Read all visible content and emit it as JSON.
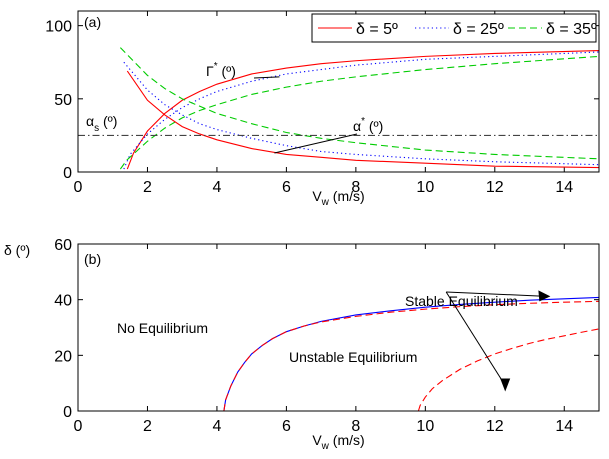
{
  "chart_data": [
    {
      "type": "line",
      "panel_label": "(a)",
      "xlabel": "V",
      "xlabel_sub": "w",
      "xlabel_unit": " (m/s)",
      "xlim": [
        0,
        15
      ],
      "ylim": [
        0,
        110
      ],
      "x_ticks": [
        0,
        2,
        4,
        6,
        8,
        10,
        12,
        14
      ],
      "y_ticks": [
        0,
        50,
        100
      ],
      "grid": false,
      "legend_position": "top-right",
      "legend": [
        {
          "name": "δ = 5º",
          "color": "#ff0000",
          "style": "solid"
        },
        {
          "name": "δ = 25º",
          "color": "#0000ff",
          "style": "dotted"
        },
        {
          "name": "δ = 35º",
          "color": "#00cc00",
          "style": "dashed"
        }
      ],
      "series": [
        {
          "group": "Γ*",
          "delta": 5,
          "color": "#ff0000",
          "style": "solid",
          "x": [
            1.42,
            1.6,
            2.0,
            2.5,
            3.0,
            3.5,
            4.0,
            5.0,
            6.0,
            7.0,
            8.0,
            10.0,
            12.0,
            15.0
          ],
          "y": [
            2,
            13,
            28,
            40,
            49,
            55,
            60,
            67,
            71,
            74,
            76,
            79,
            81,
            83
          ]
        },
        {
          "group": "Γ*",
          "delta": 25,
          "color": "#0000ff",
          "style": "dotted",
          "x": [
            1.32,
            1.5,
            2.0,
            2.5,
            3.0,
            3.5,
            4.0,
            5.0,
            6.0,
            7.0,
            8.0,
            10.0,
            12.0,
            15.0
          ],
          "y": [
            2,
            12,
            26,
            36,
            44,
            50,
            55,
            62,
            67,
            70,
            73,
            77,
            79,
            82
          ]
        },
        {
          "group": "Γ*",
          "delta": 35,
          "color": "#00cc00",
          "style": "dashed",
          "x": [
            1.22,
            1.4,
            2.0,
            2.5,
            3.0,
            3.5,
            4.0,
            5.0,
            6.0,
            7.0,
            8.0,
            10.0,
            12.0,
            15.0
          ],
          "y": [
            2,
            8,
            21,
            30,
            37,
            42,
            46,
            53,
            58,
            62,
            65,
            70,
            74,
            79
          ]
        },
        {
          "group": "α*",
          "delta": 5,
          "color": "#ff0000",
          "style": "solid",
          "x": [
            1.42,
            2.0,
            2.5,
            3.0,
            3.5,
            4.0,
            5.0,
            6.0,
            7.0,
            8.0,
            10.0,
            12.0,
            15.0
          ],
          "y": [
            69,
            49,
            39,
            31,
            26,
            22,
            16,
            12,
            10,
            8,
            6,
            4,
            3
          ]
        },
        {
          "group": "α*",
          "delta": 25,
          "color": "#0000ff",
          "style": "dotted",
          "x": [
            1.32,
            2.0,
            2.5,
            3.0,
            3.5,
            4.0,
            5.0,
            6.0,
            7.0,
            8.0,
            10.0,
            12.0,
            15.0
          ],
          "y": [
            75,
            56,
            46,
            39,
            33,
            29,
            23,
            18,
            14,
            12,
            9,
            7,
            5
          ]
        },
        {
          "group": "α*",
          "delta": 35,
          "color": "#00cc00",
          "style": "dashed",
          "x": [
            1.22,
            2.0,
            2.5,
            3.0,
            3.5,
            4.0,
            5.0,
            6.0,
            7.0,
            8.0,
            10.0,
            12.0,
            15.0
          ],
          "y": [
            85,
            66,
            57,
            50,
            45,
            40,
            33,
            27,
            23,
            20,
            15,
            12,
            9
          ]
        },
        {
          "group": "αs",
          "color": "#444444",
          "style": "dashdot",
          "x": [
            0,
            15
          ],
          "y": [
            25,
            25
          ]
        }
      ],
      "annotations": [
        {
          "base": "Γ",
          "sup": "*",
          "tail": " (º)",
          "points_to": [
            5.8,
            65
          ]
        },
        {
          "base": "α",
          "sup": "*",
          "tail": " (º)",
          "points_to": [
            6.0,
            13
          ]
        },
        {
          "base": "α",
          "sub": "s",
          "tail": " (º)",
          "points_to": null
        }
      ]
    },
    {
      "type": "line",
      "panel_label": "(b)",
      "ylabel": "δ (º)",
      "xlabel": "V",
      "xlabel_sub": "w",
      "xlabel_unit": " (m/s)",
      "xlim": [
        0,
        15
      ],
      "ylim": [
        0,
        60
      ],
      "x_ticks": [
        0,
        2,
        4,
        6,
        8,
        10,
        12,
        14
      ],
      "y_ticks": [
        0,
        20,
        40,
        60
      ],
      "grid": false,
      "series": [
        {
          "name": "stable",
          "color": "#0000ff",
          "style": "solid",
          "x": [
            4.2,
            4.25,
            4.4,
            4.6,
            4.8,
            5.0,
            5.3,
            5.6,
            6.0,
            6.5,
            7.0,
            8.0,
            9.0,
            10.0,
            11.0,
            12.0,
            13.0,
            14.0,
            15.0
          ],
          "y": [
            0,
            4,
            9,
            14,
            17.5,
            20.5,
            23.5,
            26,
            28.5,
            30.5,
            32.2,
            34.5,
            36,
            37.3,
            38.3,
            39.1,
            39.8,
            40.3,
            40.8
          ]
        },
        {
          "name": "unstable-1",
          "color": "#ff0000",
          "style": "dashed",
          "x": [
            4.2,
            4.25,
            4.4,
            4.6,
            4.8,
            5.0,
            5.3,
            5.6,
            6.0,
            6.5,
            7.0,
            8.0,
            9.0,
            10.0,
            11.0,
            12.0,
            13.0,
            14.0,
            15.0
          ],
          "y": [
            0,
            4,
            9,
            14,
            17.5,
            20.5,
            23.5,
            26,
            28.5,
            30.5,
            32,
            34,
            35.5,
            36.6,
            37.5,
            38.2,
            38.7,
            39.1,
            39.4
          ]
        },
        {
          "name": "unstable-2",
          "color": "#ff0000",
          "style": "dashed",
          "x": [
            9.8,
            9.85,
            10.0,
            10.2,
            10.5,
            11.0,
            11.5,
            12.0,
            12.5,
            13.0,
            13.5,
            14.0,
            14.5,
            15.0
          ],
          "y": [
            0,
            2,
            5,
            8,
            11,
            15,
            18,
            20.5,
            22.5,
            24.3,
            25.8,
            27,
            28.3,
            29.5
          ]
        }
      ],
      "annotations": [
        {
          "text": "No Equilibrium"
        },
        {
          "text": "Unstable Equilibrium",
          "points_to": [
            12.3,
            7
          ]
        },
        {
          "text": "Stable Equilibrium",
          "points_to": [
            13.6,
            41.2
          ]
        }
      ]
    }
  ]
}
